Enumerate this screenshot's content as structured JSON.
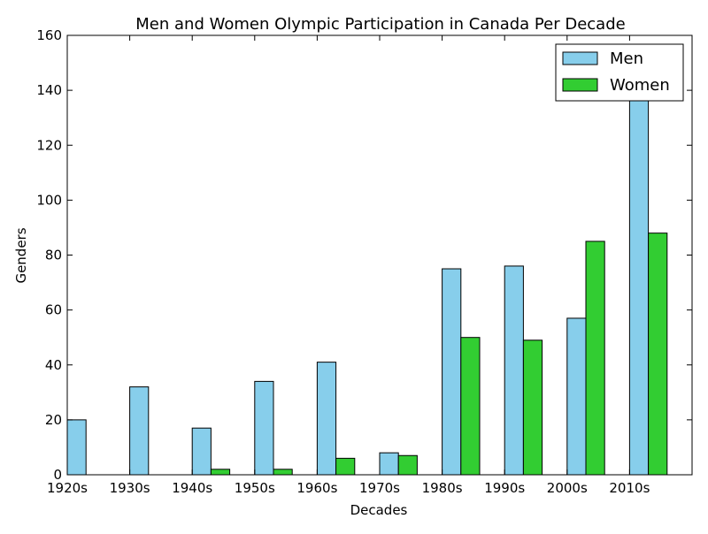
{
  "chart_data": {
    "type": "bar",
    "title": "Men and Women Olympic Participation in Canada Per Decade",
    "xlabel": "Decades",
    "ylabel": "Genders",
    "categories": [
      "1920s",
      "1930s",
      "1940s",
      "1950s",
      "1960s",
      "1970s",
      "1980s",
      "1990s",
      "2000s",
      "2010s"
    ],
    "series": [
      {
        "name": "Men",
        "color": "#87ceeb",
        "values": [
          20,
          32,
          17,
          34,
          41,
          8,
          75,
          76,
          57,
          140
        ]
      },
      {
        "name": "Women",
        "color": "#32cd32",
        "values": [
          0,
          0,
          2,
          2,
          6,
          7,
          50,
          49,
          85,
          88
        ]
      }
    ],
    "ylim": [
      0,
      160
    ],
    "yticks": [
      0,
      20,
      40,
      60,
      80,
      100,
      120,
      140,
      160
    ],
    "grid": false,
    "legend_position": "top-right"
  }
}
